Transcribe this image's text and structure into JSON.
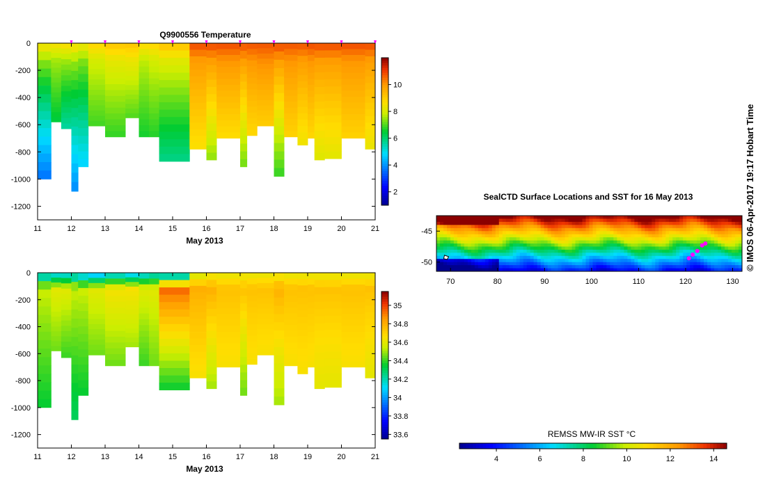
{
  "side_credit": "© IMOS 06-Apr-2017 19:17 Hobart Time",
  "chart_data": [
    {
      "type": "heatmap",
      "title": "Q9900556  Temperature",
      "xlabel": "May 2013",
      "ylabel": "",
      "xlim": [
        11,
        21
      ],
      "ylim": [
        -1300,
        0
      ],
      "x_ticks": [
        "11",
        "12",
        "13",
        "14",
        "15",
        "16",
        "17",
        "18",
        "19",
        "20",
        "21"
      ],
      "y_ticks": [
        "0",
        "-200",
        "-400",
        "-600",
        "-800",
        "-1000",
        "-1200"
      ],
      "colorbar": {
        "range": [
          1,
          12
        ],
        "ticks": [
          "2",
          "4",
          "6",
          "8",
          "10"
        ]
      },
      "profile_markers_x": [
        12,
        13,
        14,
        15,
        16,
        17,
        18,
        19,
        20,
        21
      ],
      "profiles": [
        {
          "x0": 11.0,
          "x1": 11.4,
          "depth": 1000,
          "t0": 8.6,
          "tmin": 7.5,
          "tdeep": 3.6
        },
        {
          "x0": 11.4,
          "x1": 11.7,
          "depth": 580,
          "t0": 8.6,
          "tmin": 7.6,
          "tdeep": 6.4
        },
        {
          "x0": 11.7,
          "x1": 12.0,
          "depth": 630,
          "t0": 8.7,
          "tmin": 7.6,
          "tdeep": 5.6
        },
        {
          "x0": 12.0,
          "x1": 12.2,
          "depth": 1090,
          "t0": 8.7,
          "tmin": 7.6,
          "tdeep": 3.9
        },
        {
          "x0": 12.2,
          "x1": 12.5,
          "depth": 910,
          "t0": 8.5,
          "tmin": 7.4,
          "tdeep": 4.7
        },
        {
          "x0": 12.5,
          "x1": 13.0,
          "depth": 610,
          "t0": 8.9,
          "tmin": 8.0,
          "tdeep": 6.9
        },
        {
          "x0": 13.0,
          "x1": 13.6,
          "depth": 690,
          "t0": 9.2,
          "tmin": 8.3,
          "tdeep": 6.8
        },
        {
          "x0": 13.6,
          "x1": 14.0,
          "depth": 550,
          "t0": 9.2,
          "tmin": 8.4,
          "tdeep": 7.0
        },
        {
          "x0": 14.0,
          "x1": 14.3,
          "depth": 690,
          "t0": 8.8,
          "tmin": 7.8,
          "tdeep": 6.6
        },
        {
          "x0": 14.3,
          "x1": 14.6,
          "depth": 690,
          "t0": 8.9,
          "tmin": 8.0,
          "tdeep": 6.7
        },
        {
          "x0": 14.6,
          "x1": 15.5,
          "depth": 870,
          "t0": 9.3,
          "tmin": 8.2,
          "tdeep": 5.8
        },
        {
          "x0": 15.5,
          "x1": 16.0,
          "depth": 780,
          "t0": 10.9,
          "tmin": 10.0,
          "tdeep": 8.6
        },
        {
          "x0": 16.0,
          "x1": 16.3,
          "depth": 860,
          "t0": 10.9,
          "tmin": 10.0,
          "tdeep": 7.4
        },
        {
          "x0": 16.3,
          "x1": 17.0,
          "depth": 700,
          "t0": 10.9,
          "tmin": 10.1,
          "tdeep": 8.7
        },
        {
          "x0": 17.0,
          "x1": 17.2,
          "depth": 910,
          "t0": 10.8,
          "tmin": 10.0,
          "tdeep": 7.2
        },
        {
          "x0": 17.2,
          "x1": 17.5,
          "depth": 680,
          "t0": 10.8,
          "tmin": 10.1,
          "tdeep": 8.8
        },
        {
          "x0": 17.5,
          "x1": 18.0,
          "depth": 610,
          "t0": 10.8,
          "tmin": 10.2,
          "tdeep": 9.0
        },
        {
          "x0": 18.0,
          "x1": 18.3,
          "depth": 980,
          "t0": 10.9,
          "tmin": 10.0,
          "tdeep": 6.8
        },
        {
          "x0": 18.3,
          "x1": 18.7,
          "depth": 690,
          "t0": 10.8,
          "tmin": 10.1,
          "tdeep": 8.9
        },
        {
          "x0": 18.7,
          "x1": 19.0,
          "depth": 750,
          "t0": 10.8,
          "tmin": 10.0,
          "tdeep": 8.4
        },
        {
          "x0": 19.0,
          "x1": 19.2,
          "depth": 700,
          "t0": 10.9,
          "tmin": 10.1,
          "tdeep": 8.8
        },
        {
          "x0": 19.2,
          "x1": 19.5,
          "depth": 860,
          "t0": 10.9,
          "tmin": 10.0,
          "tdeep": 8.1
        },
        {
          "x0": 19.5,
          "x1": 20.0,
          "depth": 850,
          "t0": 10.9,
          "tmin": 10.0,
          "tdeep": 8.2
        },
        {
          "x0": 20.0,
          "x1": 20.7,
          "depth": 700,
          "t0": 10.9,
          "tmin": 10.1,
          "tdeep": 8.9
        },
        {
          "x0": 20.7,
          "x1": 21.0,
          "depth": 780,
          "t0": 10.9,
          "tmin": 10.0,
          "tdeep": 8.3
        }
      ]
    },
    {
      "type": "heatmap",
      "title": "",
      "xlabel": "May 2013",
      "ylabel": "",
      "xlim": [
        11,
        21
      ],
      "ylim": [
        -1300,
        0
      ],
      "x_ticks": [
        "11",
        "12",
        "13",
        "14",
        "15",
        "16",
        "17",
        "18",
        "19",
        "20",
        "21"
      ],
      "y_ticks": [
        "0",
        "-200",
        "-400",
        "-600",
        "-800",
        "-1000",
        "-1200"
      ],
      "colorbar": {
        "range": [
          33.55,
          35.15
        ],
        "ticks": [
          "33.6",
          "33.8",
          "34",
          "34.2",
          "34.4",
          "34.6",
          "34.8",
          "35"
        ]
      },
      "profiles": [
        {
          "x0": 11.0,
          "x1": 11.4,
          "depth": 1000,
          "t0": 34.1,
          "tmin": 34.55,
          "tdeep": 34.35
        },
        {
          "x0": 11.4,
          "x1": 11.7,
          "depth": 580,
          "t0": 34.1,
          "tmin": 34.6,
          "tdeep": 34.45
        },
        {
          "x0": 11.7,
          "x1": 12.0,
          "depth": 630,
          "t0": 34.1,
          "tmin": 34.6,
          "tdeep": 34.4
        },
        {
          "x0": 12.0,
          "x1": 12.2,
          "depth": 1090,
          "t0": 34.1,
          "tmin": 34.55,
          "tdeep": 34.3
        },
        {
          "x0": 12.2,
          "x1": 12.5,
          "depth": 910,
          "t0": 34.05,
          "tmin": 34.55,
          "tdeep": 34.35
        },
        {
          "x0": 12.5,
          "x1": 13.0,
          "depth": 610,
          "t0": 34.0,
          "tmin": 34.6,
          "tdeep": 34.45
        },
        {
          "x0": 13.0,
          "x1": 13.6,
          "depth": 690,
          "t0": 34.1,
          "tmin": 34.65,
          "tdeep": 34.45
        },
        {
          "x0": 13.6,
          "x1": 14.0,
          "depth": 550,
          "t0": 34.05,
          "tmin": 34.65,
          "tdeep": 34.5
        },
        {
          "x0": 14.0,
          "x1": 14.3,
          "depth": 690,
          "t0": 34.1,
          "tmin": 34.6,
          "tdeep": 34.4
        },
        {
          "x0": 14.3,
          "x1": 14.6,
          "depth": 690,
          "t0": 34.15,
          "tmin": 34.6,
          "tdeep": 34.45
        },
        {
          "x0": 14.6,
          "x1": 15.5,
          "depth": 870,
          "t0": 34.0,
          "tmin": 34.95,
          "tdeep": 34.35
        },
        {
          "x0": 15.5,
          "x1": 16.0,
          "depth": 780,
          "t0": 34.55,
          "tmin": 34.8,
          "tdeep": 34.65
        },
        {
          "x0": 16.0,
          "x1": 16.3,
          "depth": 860,
          "t0": 34.6,
          "tmin": 34.8,
          "tdeep": 34.5
        },
        {
          "x0": 16.3,
          "x1": 17.0,
          "depth": 700,
          "t0": 34.6,
          "tmin": 34.75,
          "tdeep": 34.65
        },
        {
          "x0": 17.0,
          "x1": 17.2,
          "depth": 910,
          "t0": 34.6,
          "tmin": 34.75,
          "tdeep": 34.45
        },
        {
          "x0": 17.2,
          "x1": 17.5,
          "depth": 680,
          "t0": 34.6,
          "tmin": 34.75,
          "tdeep": 34.65
        },
        {
          "x0": 17.5,
          "x1": 18.0,
          "depth": 610,
          "t0": 34.6,
          "tmin": 34.75,
          "tdeep": 34.65
        },
        {
          "x0": 18.0,
          "x1": 18.3,
          "depth": 980,
          "t0": 34.6,
          "tmin": 34.8,
          "tdeep": 34.5
        },
        {
          "x0": 18.3,
          "x1": 18.7,
          "depth": 690,
          "t0": 34.6,
          "tmin": 34.75,
          "tdeep": 34.65
        },
        {
          "x0": 18.7,
          "x1": 19.0,
          "depth": 750,
          "t0": 34.6,
          "tmin": 34.75,
          "tdeep": 34.65
        },
        {
          "x0": 19.0,
          "x1": 19.2,
          "depth": 700,
          "t0": 34.6,
          "tmin": 34.75,
          "tdeep": 34.65
        },
        {
          "x0": 19.2,
          "x1": 19.5,
          "depth": 860,
          "t0": 34.6,
          "tmin": 34.75,
          "tdeep": 34.6
        },
        {
          "x0": 19.5,
          "x1": 20.0,
          "depth": 850,
          "t0": 34.6,
          "tmin": 34.75,
          "tdeep": 34.6
        },
        {
          "x0": 20.0,
          "x1": 20.7,
          "depth": 700,
          "t0": 34.6,
          "tmin": 34.75,
          "tdeep": 34.65
        },
        {
          "x0": 20.7,
          "x1": 21.0,
          "depth": 780,
          "t0": 34.6,
          "tmin": 34.75,
          "tdeep": 34.6
        }
      ]
    },
    {
      "type": "heatmap",
      "title": "SealCTD Surface Locations and SST for 16 May 2013",
      "xlim": [
        67,
        132
      ],
      "ylim": [
        -51.5,
        -42.5
      ],
      "x_ticks": [
        "70",
        "80",
        "90",
        "100",
        "110",
        "120",
        "130"
      ],
      "y_ticks": [
        "-45",
        "-50"
      ],
      "surface_locations": [
        {
          "lon": 121.5,
          "lat": -48.8
        },
        {
          "lon": 122.5,
          "lat": -48.2
        },
        {
          "lon": 123.5,
          "lat": -47.3
        },
        {
          "lon": 124.2,
          "lat": -47.0
        },
        {
          "lon": 120.7,
          "lat": -49.4
        }
      ],
      "colorbar": {
        "label": "REMSS MW-IR SST °C",
        "range": [
          2.3,
          14.6
        ],
        "ticks": [
          "4",
          "6",
          "8",
          "10",
          "12",
          "14"
        ]
      }
    }
  ]
}
